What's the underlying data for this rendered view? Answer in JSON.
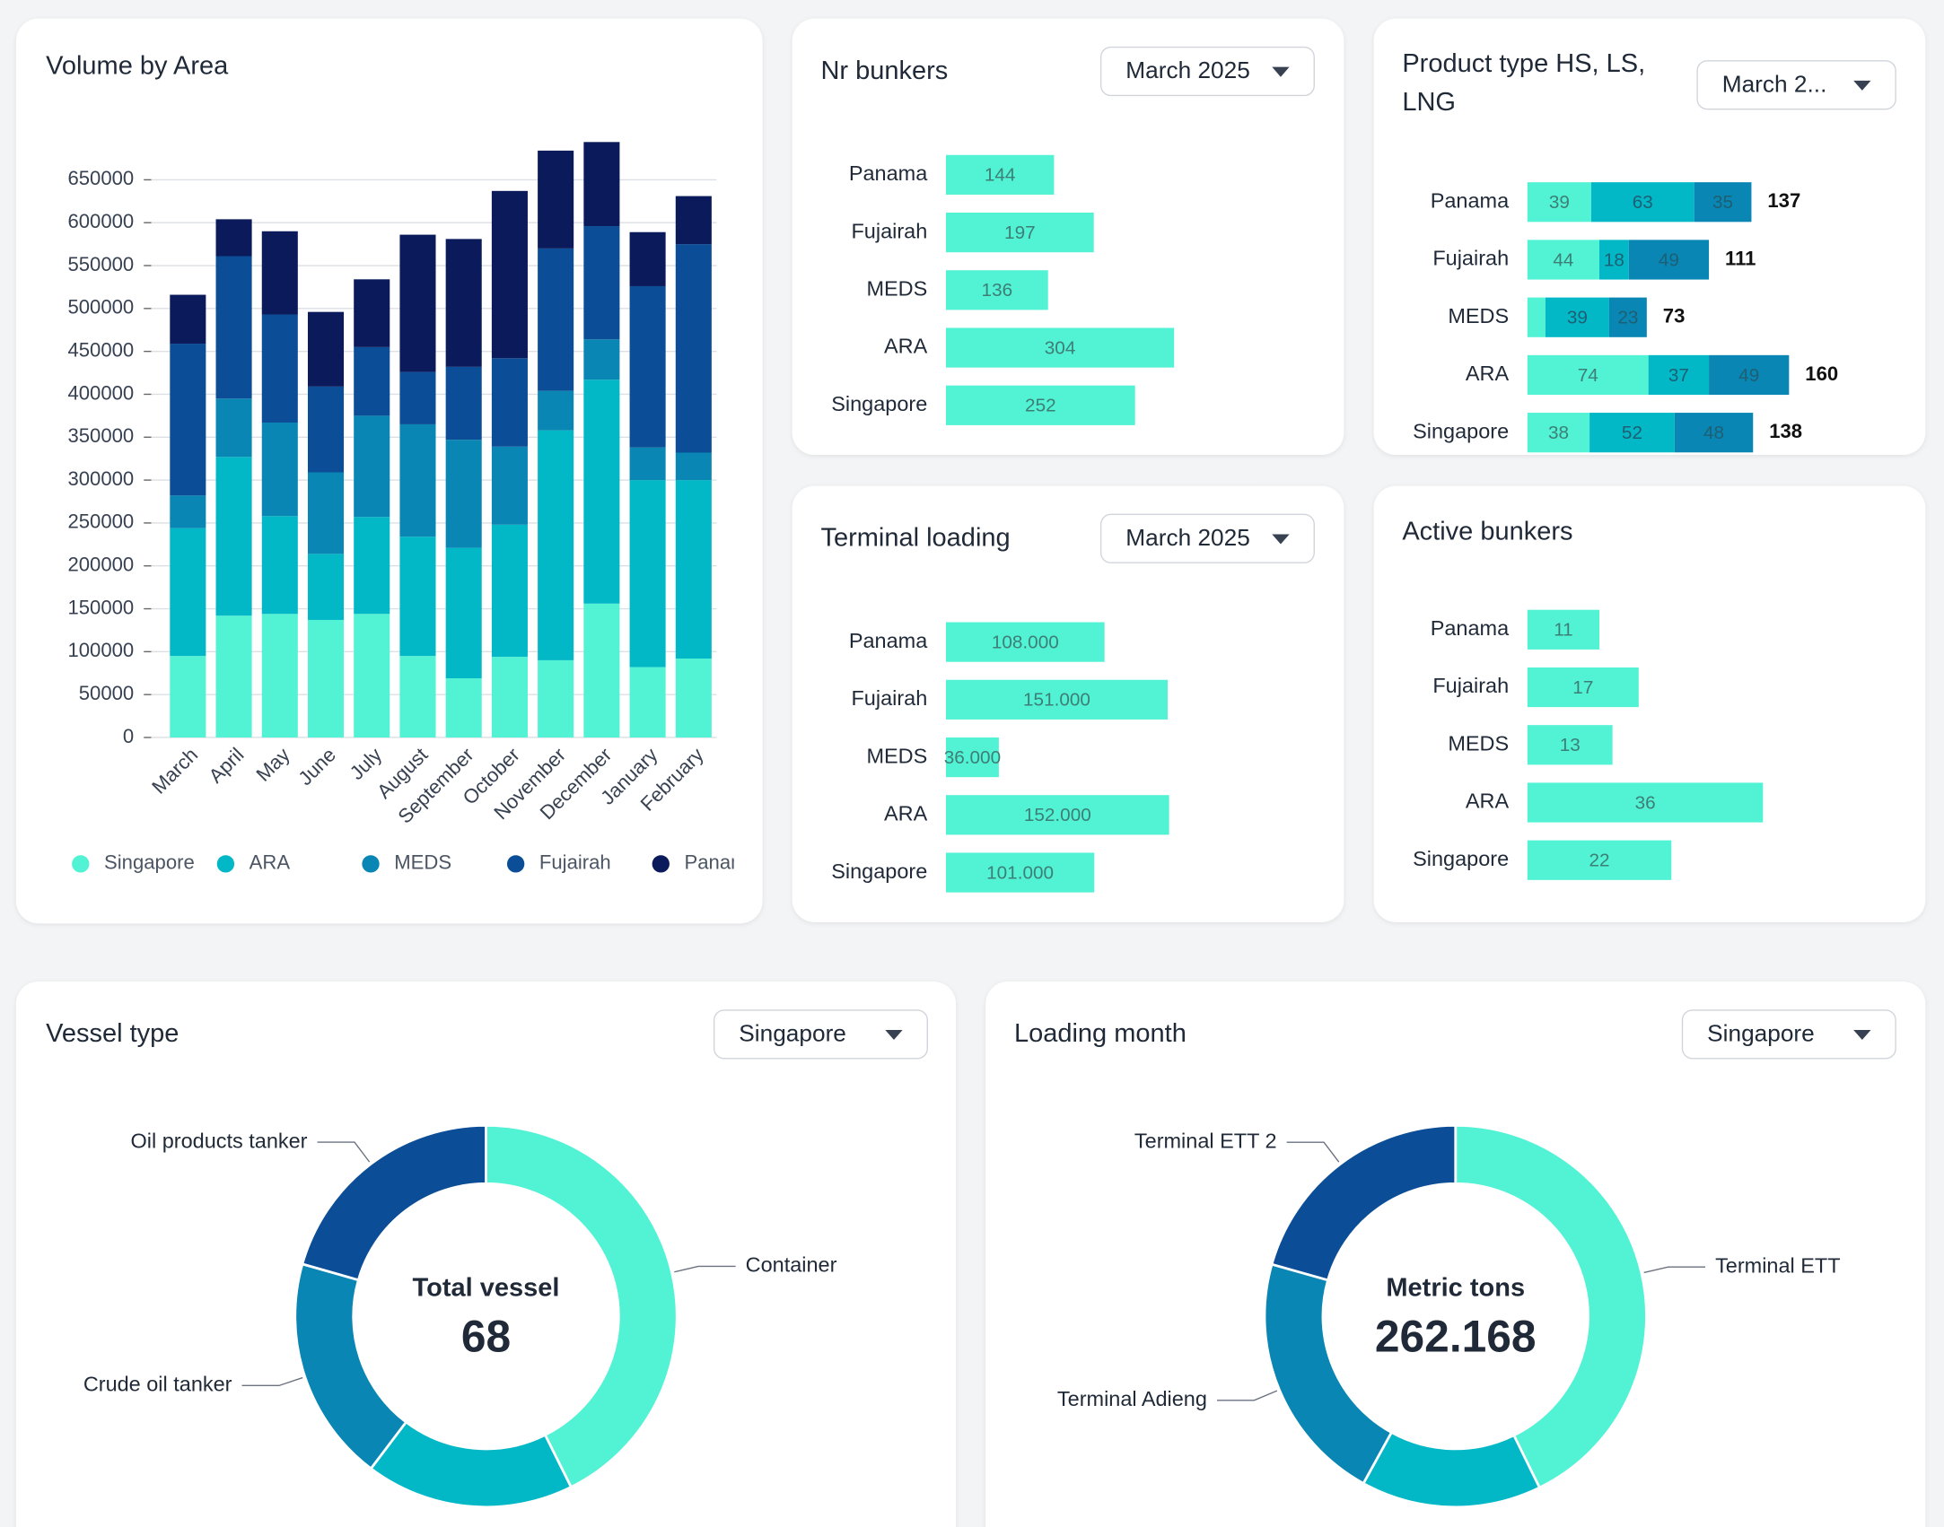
{
  "chart_data": [
    {
      "type": "bar",
      "orientation": "vertical",
      "stacked": true,
      "title": "Volume by Area",
      "categories": [
        "March",
        "April",
        "May",
        "June",
        "July",
        "August",
        "September",
        "October",
        "November",
        "December",
        "January",
        "February"
      ],
      "series": [
        {
          "name": "Singapore",
          "color": "#52f2d4",
          "values": [
            95000,
            142000,
            144000,
            137000,
            144000,
            95000,
            69000,
            94000,
            90000,
            156000,
            82000,
            92000
          ]
        },
        {
          "name": "ARA",
          "color": "#03b8c6",
          "values": [
            149000,
            185000,
            114000,
            77000,
            113000,
            139000,
            152000,
            154000,
            268000,
            261000,
            218000,
            208000
          ]
        },
        {
          "name": "MEDS",
          "color": "#0a86b4",
          "values": [
            38000,
            68000,
            109000,
            95000,
            118000,
            131000,
            126000,
            91000,
            46000,
            47000,
            38000,
            32000
          ]
        },
        {
          "name": "Fujairah",
          "color": "#0b4d96",
          "values": [
            177000,
            166000,
            126000,
            100000,
            80000,
            61000,
            85000,
            103000,
            166000,
            132000,
            188000,
            243000
          ]
        },
        {
          "name": "Panama",
          "color": "#0b1a5a",
          "values": [
            57000,
            43000,
            97000,
            87000,
            79000,
            160000,
            149000,
            195000,
            114000,
            98000,
            63000,
            56000
          ]
        }
      ],
      "ylim": [
        0,
        700000
      ],
      "yticks": [
        0,
        50000,
        100000,
        150000,
        200000,
        250000,
        300000,
        350000,
        400000,
        450000,
        500000,
        550000,
        600000,
        650000
      ],
      "grid": true,
      "legend": "bottom"
    },
    {
      "type": "bar",
      "orientation": "horizontal",
      "title": "Nr bunkers",
      "filter": "March 2025",
      "categories": [
        "Panama",
        "Fujairah",
        "MEDS",
        "ARA",
        "Singapore"
      ],
      "values": [
        144,
        197,
        136,
        304,
        252
      ],
      "color": "#52f2d4"
    },
    {
      "type": "bar",
      "orientation": "horizontal",
      "stacked": true,
      "title": "Product type HS, LS, LNG",
      "filter": "March 2...",
      "categories": [
        "Panama",
        "Fujairah",
        "MEDS",
        "ARA",
        "Singapore"
      ],
      "series": [
        {
          "color": "#52f2d4",
          "values": [
            39,
            44,
            11,
            74,
            38
          ]
        },
        {
          "color": "#03b8c6",
          "values": [
            63,
            18,
            39,
            37,
            52
          ]
        },
        {
          "color": "#0a86b4",
          "values": [
            35,
            49,
            23,
            49,
            48
          ]
        }
      ],
      "totals": [
        137,
        111,
        73,
        160,
        138
      ]
    },
    {
      "type": "bar",
      "orientation": "horizontal",
      "title": "Terminal loading",
      "filter": "March 2025",
      "categories": [
        "Panama",
        "Fujairah",
        "MEDS",
        "ARA",
        "Singapore"
      ],
      "values": [
        108000,
        151000,
        36000,
        152000,
        101000
      ],
      "value_labels": [
        "108.000",
        "151.000",
        "36.000",
        "152.000",
        "101.000"
      ],
      "color": "#52f2d4"
    },
    {
      "type": "bar",
      "orientation": "horizontal",
      "title": "Active bunkers",
      "categories": [
        "Panama",
        "Fujairah",
        "MEDS",
        "ARA",
        "Singapore"
      ],
      "values": [
        11,
        17,
        13,
        36,
        22
      ],
      "color": "#52f2d4"
    },
    {
      "type": "donut",
      "title": "Vessel type",
      "filter": "Singapore",
      "categories": [
        "Container",
        null,
        "Crude oil tanker",
        "Oil products tanker"
      ],
      "values": [
        29,
        12,
        13,
        14
      ],
      "colors": [
        "#52f2d4",
        "#03b8c6",
        "#0a86b4",
        "#0b4d96"
      ],
      "center_label": "Total vessel",
      "center_value": 68
    },
    {
      "type": "donut",
      "title": "Loading month",
      "filter": "Singapore",
      "categories": [
        "Terminal ETT",
        null,
        "Terminal Adieng",
        "Terminal ETT 2"
      ],
      "values": [
        112000,
        40000,
        56000,
        54000
      ],
      "colors": [
        "#52f2d4",
        "#03b8c6",
        "#0a86b4",
        "#0b4d96"
      ],
      "center_label": "Metric tons",
      "center_value": 262168,
      "center_value_label": "262.168"
    }
  ]
}
